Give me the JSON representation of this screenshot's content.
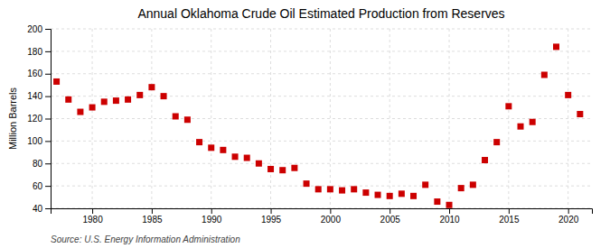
{
  "chart_data": {
    "type": "scatter",
    "title": "Annual Oklahoma Crude Oil Estimated Production from Reserves",
    "ylabel": "Million Barrels",
    "annotation": "Source: U.S. Energy Information Administration",
    "x": [
      1977,
      1978,
      1979,
      1980,
      1981,
      1982,
      1983,
      1984,
      1985,
      1986,
      1987,
      1988,
      1989,
      1990,
      1991,
      1992,
      1993,
      1994,
      1995,
      1996,
      1997,
      1998,
      1999,
      2000,
      2001,
      2002,
      2003,
      2004,
      2005,
      2006,
      2007,
      2008,
      2009,
      2010,
      2011,
      2012,
      2013,
      2014,
      2015,
      2016,
      2017,
      2018,
      2019,
      2020,
      2021
    ],
    "values": [
      153,
      137,
      126,
      130,
      135,
      136,
      137,
      141,
      148,
      140,
      122,
      119,
      99,
      94,
      92,
      86,
      85,
      80,
      75,
      74,
      76,
      62,
      57,
      57,
      56,
      57,
      54,
      52,
      51,
      53,
      51,
      61,
      46,
      43,
      58,
      61,
      83,
      99,
      131,
      113,
      117,
      159,
      184,
      141,
      124
    ],
    "color": "#cc0000",
    "marker": "square",
    "xlim": [
      1976.5,
      2022
    ],
    "ylim": [
      40,
      200
    ],
    "xticks": [
      1980,
      1985,
      1990,
      1995,
      2000,
      2005,
      2010,
      2015,
      2020
    ],
    "yticks": [
      40,
      60,
      80,
      100,
      120,
      140,
      160,
      180,
      200
    ],
    "grid": true
  }
}
